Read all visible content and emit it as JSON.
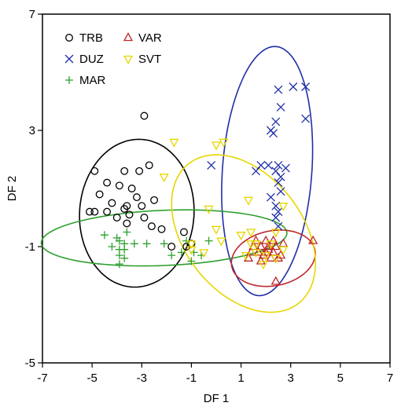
{
  "chart_data": {
    "type": "scatter",
    "xlabel": "DF 1",
    "ylabel": "DF 2",
    "xlim": [
      -7,
      7
    ],
    "ylim": [
      -5,
      7
    ],
    "xticks": [
      -7,
      -5,
      -3,
      -1,
      1,
      3,
      5,
      7
    ],
    "yticks": [
      -5,
      -1,
      3,
      7
    ],
    "xtick_labels": [
      "-7",
      "-5",
      "-3",
      "-1",
      "1",
      "3",
      "5",
      "7"
    ],
    "ytick_labels": [
      "-5",
      "-1",
      "3",
      "7"
    ],
    "grid": false,
    "legend_position": "top-left",
    "series": [
      {
        "name": "TRB",
        "marker": "circle",
        "color": "#000000",
        "points": [
          [
            -2.9,
            3.5
          ],
          [
            -4.9,
            1.6
          ],
          [
            -3.7,
            1.6
          ],
          [
            -3.1,
            1.6
          ],
          [
            -2.7,
            1.8
          ],
          [
            -4.4,
            1.2
          ],
          [
            -3.9,
            1.1
          ],
          [
            -3.4,
            1.0
          ],
          [
            -4.7,
            0.8
          ],
          [
            -3.2,
            0.7
          ],
          [
            -2.5,
            0.6
          ],
          [
            -4.2,
            0.5
          ],
          [
            -3.6,
            0.4
          ],
          [
            -3.0,
            0.4
          ],
          [
            -5.1,
            0.2
          ],
          [
            -4.9,
            0.2
          ],
          [
            -4.4,
            0.2
          ],
          [
            -3.7,
            0.3
          ],
          [
            -3.5,
            0.1
          ],
          [
            -2.9,
            0.0
          ],
          [
            -4.0,
            0.0
          ],
          [
            -3.6,
            -0.2
          ],
          [
            -2.6,
            -0.3
          ],
          [
            -2.2,
            -0.4
          ],
          [
            -1.3,
            -0.5
          ],
          [
            -1.8,
            -1.0
          ],
          [
            -1.2,
            -1.0
          ],
          [
            -1.0,
            -0.9
          ]
        ]
      },
      {
        "name": "DUZ",
        "marker": "x",
        "color": "#1f2fa8",
        "points": [
          [
            2.5,
            4.4
          ],
          [
            3.1,
            4.5
          ],
          [
            3.6,
            4.5
          ],
          [
            2.6,
            3.8
          ],
          [
            3.6,
            3.4
          ],
          [
            2.4,
            3.3
          ],
          [
            2.2,
            3.0
          ],
          [
            2.3,
            2.9
          ],
          [
            -0.2,
            1.8
          ],
          [
            1.8,
            1.8
          ],
          [
            2.1,
            1.8
          ],
          [
            2.5,
            1.8
          ],
          [
            2.8,
            1.7
          ],
          [
            1.6,
            1.6
          ],
          [
            2.4,
            1.6
          ],
          [
            2.6,
            1.4
          ],
          [
            2.5,
            1.2
          ],
          [
            2.6,
            0.9
          ],
          [
            2.2,
            0.7
          ],
          [
            2.4,
            0.4
          ],
          [
            2.5,
            0.2
          ],
          [
            2.4,
            0.0
          ],
          [
            2.5,
            -0.3
          ]
        ]
      },
      {
        "name": "MAR",
        "marker": "plus",
        "color": "#2ea02e",
        "points": [
          [
            -4.0,
            -0.7
          ],
          [
            -3.9,
            -0.8
          ],
          [
            -3.7,
            -0.9
          ],
          [
            -3.9,
            -1.1
          ],
          [
            -3.7,
            -1.1
          ],
          [
            -3.9,
            -1.3
          ],
          [
            -3.7,
            -1.4
          ],
          [
            -3.3,
            -0.9
          ],
          [
            -2.8,
            -0.9
          ],
          [
            -2.1,
            -0.9
          ],
          [
            -1.2,
            -0.8
          ],
          [
            -0.3,
            -0.8
          ],
          [
            -1.4,
            -1.2
          ],
          [
            -1.8,
            -1.3
          ],
          [
            -0.9,
            -1.2
          ],
          [
            -0.6,
            -1.3
          ],
          [
            -1.0,
            -1.5
          ],
          [
            -3.9,
            -1.6
          ],
          [
            -4.2,
            -1.0
          ],
          [
            -3.6,
            -0.5
          ],
          [
            -4.5,
            -0.6
          ]
        ]
      },
      {
        "name": "VAR",
        "marker": "triangle-up",
        "color": "#c0282a",
        "points": [
          [
            1.6,
            -0.8
          ],
          [
            2.0,
            -0.8
          ],
          [
            2.3,
            -0.8
          ],
          [
            2.7,
            -0.9
          ],
          [
            1.5,
            -1.0
          ],
          [
            1.8,
            -1.0
          ],
          [
            2.1,
            -1.0
          ],
          [
            2.4,
            -1.0
          ],
          [
            1.7,
            -1.2
          ],
          [
            2.0,
            -1.2
          ],
          [
            2.3,
            -1.2
          ],
          [
            2.6,
            -1.3
          ],
          [
            1.9,
            -1.3
          ],
          [
            3.9,
            -0.8
          ],
          [
            1.4,
            -1.2
          ],
          [
            2.2,
            -1.4
          ],
          [
            2.5,
            -1.4
          ],
          [
            1.8,
            -1.5
          ],
          [
            2.4,
            -2.2
          ],
          [
            1.3,
            -1.4
          ],
          [
            2.1,
            -1.1
          ]
        ]
      },
      {
        "name": "SVT",
        "marker": "triangle-down",
        "color": "#e8d600",
        "points": [
          [
            -1.7,
            2.6
          ],
          [
            0.0,
            2.5
          ],
          [
            0.3,
            2.6
          ],
          [
            -2.1,
            1.4
          ],
          [
            -0.3,
            0.3
          ],
          [
            1.3,
            0.6
          ],
          [
            2.7,
            0.4
          ],
          [
            0.0,
            -0.4
          ],
          [
            1.0,
            -0.6
          ],
          [
            1.4,
            -0.5
          ],
          [
            2.4,
            -0.5
          ],
          [
            0.2,
            -0.8
          ],
          [
            -1.0,
            -0.9
          ],
          [
            -1.0,
            -1.1
          ],
          [
            -0.5,
            -1.2
          ],
          [
            1.4,
            -0.9
          ],
          [
            1.6,
            -0.9
          ],
          [
            2.2,
            -0.9
          ],
          [
            2.7,
            -1.1
          ],
          [
            1.6,
            -1.2
          ],
          [
            2.0,
            -1.3
          ],
          [
            2.4,
            -1.4
          ],
          [
            1.2,
            -1.3
          ],
          [
            1.9,
            -1.6
          ]
        ]
      }
    ],
    "ellipses": [
      {
        "series": "TRB",
        "color": "#000000",
        "cx": -3.2,
        "cy": 0.15,
        "rx": 2.55,
        "ry": 2.3,
        "angle": 80
      },
      {
        "series": "DUZ",
        "color": "#1f2fa8",
        "cx": 2.05,
        "cy": 1.6,
        "rx": 4.3,
        "ry": 1.8,
        "angle": 85
      },
      {
        "series": "MAR",
        "color": "#2ea02e",
        "cx": -2.1,
        "cy": -0.7,
        "rx": 4.95,
        "ry": 0.95,
        "angle": 2
      },
      {
        "series": "VAR",
        "color": "#c0282a",
        "cx": 2.3,
        "cy": -1.4,
        "rx": 1.7,
        "ry": 0.95,
        "angle": 8
      },
      {
        "series": "SVT",
        "color": "#e8d600",
        "cx": 1.1,
        "cy": -0.55,
        "rx": 3.3,
        "ry": 2.2,
        "angle": -40
      }
    ]
  }
}
